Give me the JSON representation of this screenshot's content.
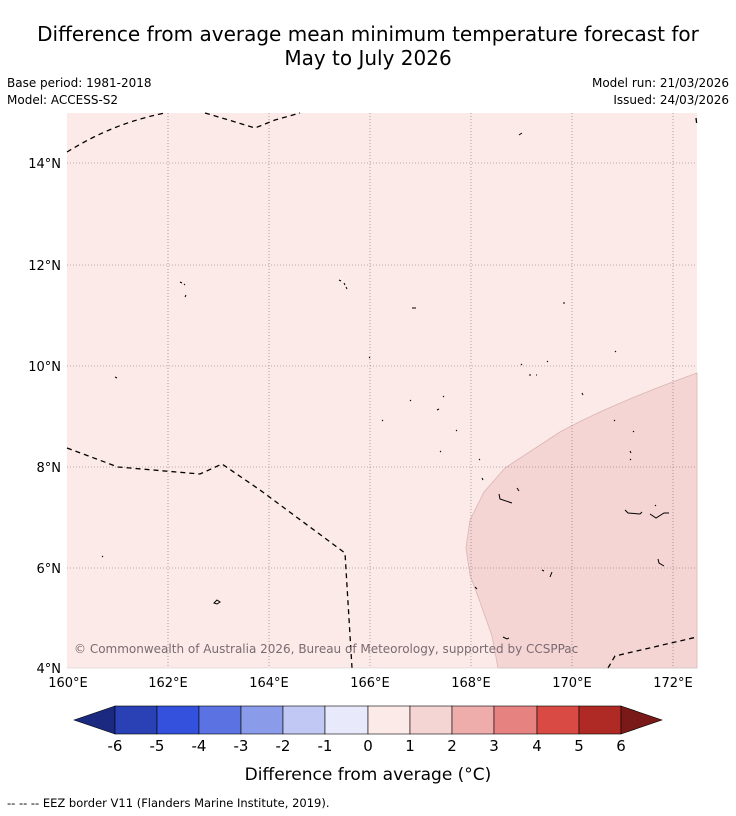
{
  "title": {
    "line1": "Difference from average mean minimum temperature forecast for",
    "line2": "May to July 2026"
  },
  "meta": {
    "base_period": "Base period: 1981-2018",
    "model": "Model: ACCESS-S2",
    "model_run": "Model run: 21/03/2026",
    "issued": "Issued: 24/03/2026"
  },
  "map": {
    "copyright": "© Commonwealth of Australia 2026, Bureau of Meteorology, supported by CCSPPac",
    "lat_labels": [
      "14°N",
      "12°N",
      "10°N",
      "8°N",
      "6°N",
      "4°N"
    ],
    "lon_labels": [
      "160°E",
      "162°E",
      "164°E",
      "166°E",
      "168°E",
      "170°E",
      "172°E"
    ],
    "extent": {
      "lon": [
        160,
        172.5
      ],
      "lat": [
        4,
        15
      ]
    },
    "fill_colors": {
      "band_0_1": "#fbeae7",
      "band_1_2": "#f4d5d4"
    }
  },
  "legend": {
    "ticks": [
      "-6",
      "-5",
      "-4",
      "-3",
      "-2",
      "-1",
      "0",
      "1",
      "2",
      "3",
      "4",
      "5",
      "6"
    ],
    "colors": [
      "#1b2a80",
      "#2a41b5",
      "#3451dd",
      "#5a72e2",
      "#8a9ce9",
      "#c1c8f3",
      "#e8eafb",
      "#fbeae7",
      "#f4d5d4",
      "#eeacaa",
      "#e68280",
      "#d94a44",
      "#b02a25",
      "#7a1a18"
    ],
    "label": "Difference from average (°C)"
  },
  "footnote": "--  --  -- EEZ border V11 (Flanders Marine Institute, 2019)."
}
